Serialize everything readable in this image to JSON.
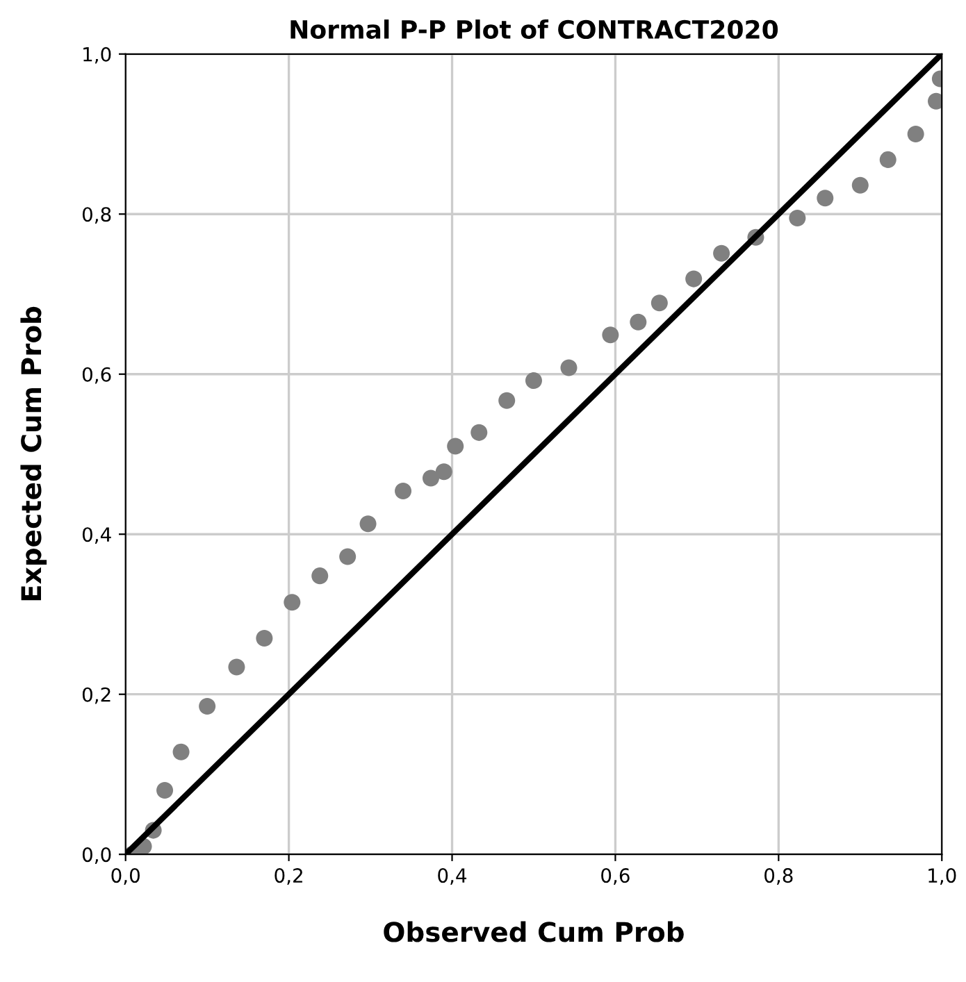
{
  "chart_data": {
    "type": "scatter",
    "title": "Normal P-P Plot of CONTRACT2020",
    "xlabel": "Observed Cum Prob",
    "ylabel": "Expected Cum Prob",
    "series": [
      {
        "color": "#808080",
        "marker": "circle",
        "x": [
          0.008,
          0.022,
          0.034,
          0.048,
          0.068,
          0.1,
          0.136,
          0.17,
          0.204,
          0.238,
          0.272,
          0.297,
          0.34,
          0.374,
          0.39,
          0.404,
          0.433,
          0.467,
          0.5,
          0.543,
          0.594,
          0.628,
          0.654,
          0.696,
          0.73,
          0.772,
          0.823,
          0.857,
          0.9,
          0.934,
          0.968,
          0.993,
          0.998
        ],
        "values": [
          0.0,
          0.01,
          0.03,
          0.08,
          0.128,
          0.185,
          0.234,
          0.27,
          0.315,
          0.348,
          0.372,
          0.413,
          0.454,
          0.47,
          0.478,
          0.51,
          0.527,
          0.567,
          0.592,
          0.608,
          0.649,
          0.665,
          0.689,
          0.719,
          0.751,
          0.771,
          0.795,
          0.82,
          0.836,
          0.868,
          0.9,
          0.941,
          0.969
        ]
      },
      {
        "type": "line",
        "color": "#000000",
        "x": [
          0.0,
          1.0
        ],
        "values": [
          0.0,
          1.0
        ]
      }
    ],
    "xlim": [
      0,
      1
    ],
    "ylim": [
      0,
      1
    ],
    "xticks": [
      {
        "value": 0,
        "label": "0,0"
      },
      {
        "value": 0.2,
        "label": "0,2"
      },
      {
        "value": 0.4,
        "label": "0,4"
      },
      {
        "value": 0.6,
        "label": "0,6"
      },
      {
        "value": 0.8,
        "label": "0,8"
      },
      {
        "value": 1,
        "label": "1,0"
      }
    ],
    "yticks": [
      {
        "value": 0,
        "label": "0,0"
      },
      {
        "value": 0.2,
        "label": "0,2"
      },
      {
        "value": 0.4,
        "label": "0,4"
      },
      {
        "value": 0.6,
        "label": "0,6"
      },
      {
        "value": 0.8,
        "label": "0,8"
      },
      {
        "value": 1,
        "label": "1,0"
      }
    ],
    "grid": true
  }
}
